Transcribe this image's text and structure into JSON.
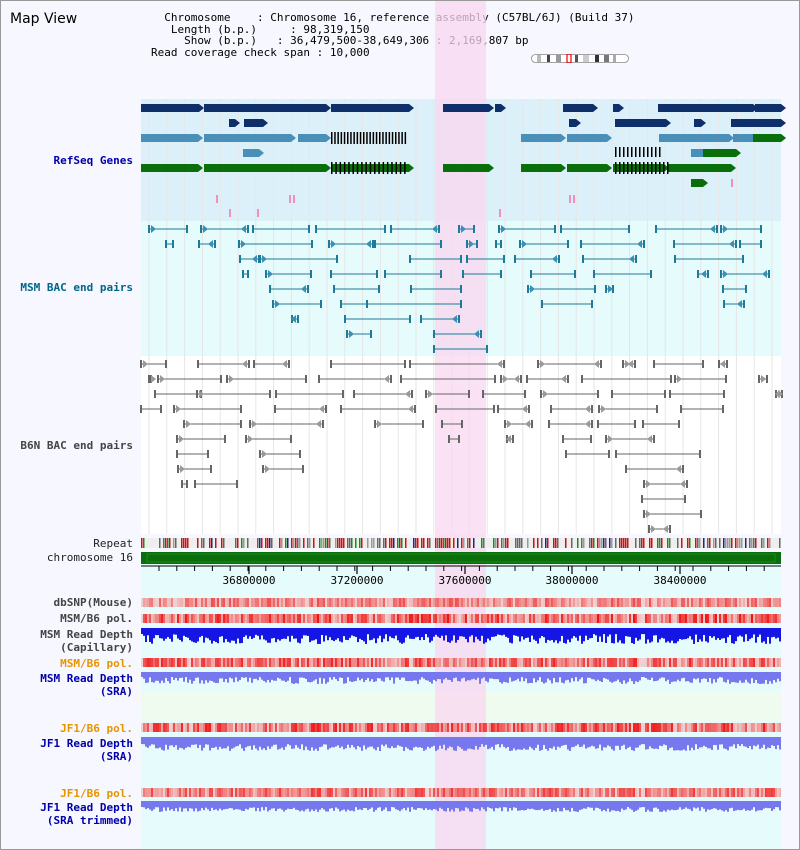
{
  "title": "Map View",
  "info": {
    "chromosome_label": "Chromosome",
    "chromosome_value": "Chromosome 16, reference assembly (C57BL/6J) (Build 37)",
    "length_label": "Length (b.p.)",
    "length_value": "98,319,150",
    "show_label": "Show (b.p.)",
    "show_value": "36,479,500-38,649,306 : 2,169,807 bp",
    "coverage_label": "Read coverage check span",
    "coverage_value": "10,000"
  },
  "tracks": {
    "refseq": "RefSeq Genes",
    "msm_bac": "MSM BAC end pairs",
    "b6n_bac": "B6N BAC end pairs",
    "repeat": "Repeat",
    "chromosome": "chromosome 16",
    "dbsnp": "dbSNP(Mouse)",
    "msm_pol_1": "MSM/B6 pol.",
    "msm_depth_cap_1": "MSM Read Depth",
    "msm_depth_cap_2": "(Capillary)",
    "msm_pol_2": "MSM/B6 pol.",
    "msm_depth_sra_1": "MSM Read Depth",
    "msm_depth_sra_2": "(SRA)",
    "jf1_pol_1": "JF1/B6 pol.",
    "jf1_depth_sra_1": "JF1 Read Depth",
    "jf1_depth_sra_2": "(SRA)",
    "jf1_pol_2": "JF1/B6 pol.",
    "jf1_depth_trim_1": "JF1 Read Depth",
    "jf1_depth_trim_2": "(SRA trimmed)"
  },
  "axis": {
    "ticks": [
      "36800000",
      "37200000",
      "37600000",
      "38000000",
      "38400000"
    ]
  },
  "colors": {
    "refseq_bg": "#dcf0fa",
    "msm_bg": "#e6fbfb",
    "highlight": "#f9d7f0",
    "gene_dark": "#0f2f6a",
    "gene_mid": "#4a8fb8",
    "gene_green": "#0a6e0a",
    "chromosome_bar": "#0a6e0a",
    "depth_blue": "#1515e6",
    "depth_light": "#7777ee"
  }
}
